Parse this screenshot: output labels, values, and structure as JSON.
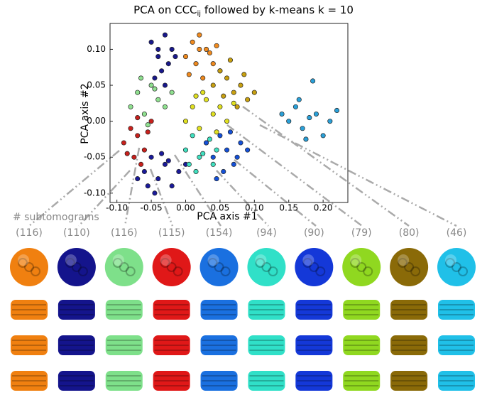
{
  "chart_data": {
    "type": "scatter",
    "title": "PCA on CCC",
    "title_subscript": "ij",
    "title_suffix": " followed by k-means k = 10",
    "x_label": "PCA axis #1",
    "y_label": "PCA axis #2",
    "xlim": [
      -0.11,
      0.236
    ],
    "ylim": [
      -0.113,
      0.136
    ],
    "xticks": [
      {
        "value": -0.1,
        "label": "-0.10"
      },
      {
        "value": -0.05,
        "label": "-0.05"
      },
      {
        "value": 0,
        "label": "0.00"
      },
      {
        "value": 0.05,
        "label": "0.05"
      },
      {
        "value": 0.1,
        "label": "0.10"
      },
      {
        "value": 0.15,
        "label": "0.15"
      },
      {
        "value": 0.2,
        "label": "0.20"
      }
    ],
    "yticks": [
      {
        "value": -0.1,
        "label": "-0.10"
      },
      {
        "value": -0.05,
        "label": "-0.05"
      },
      {
        "value": 0,
        "label": "0.00"
      },
      {
        "value": 0.05,
        "label": "0.05"
      },
      {
        "value": 0.1,
        "label": "0.10"
      }
    ],
    "series": [
      {
        "color": "#f08a1e",
        "x": [
          0.0,
          0.01,
          0.02,
          0.03,
          0.04,
          0.05,
          0.015,
          0.025,
          0.035,
          0.005,
          0.045,
          0.02
        ],
        "values": [
          0.09,
          0.11,
          0.12,
          0.1,
          0.08,
          0.07,
          0.08,
          0.06,
          0.095,
          0.065,
          0.105,
          0.1
        ]
      },
      {
        "color": "#18188c",
        "x": [
          -0.05,
          -0.04,
          -0.03,
          -0.02,
          -0.035,
          -0.045,
          -0.025,
          -0.015,
          -0.03,
          -0.04
        ],
        "values": [
          0.11,
          0.09,
          0.12,
          0.1,
          0.07,
          0.06,
          0.08,
          0.09,
          0.05,
          0.1
        ]
      },
      {
        "color": "#8fe08f",
        "x": [
          -0.08,
          -0.07,
          -0.06,
          -0.05,
          -0.04,
          -0.03,
          -0.02,
          -0.055,
          -0.045,
          -0.065
        ],
        "values": [
          0.02,
          0.04,
          0.01,
          0.05,
          0.03,
          0.02,
          0.04,
          -0.005,
          0.045,
          0.06
        ]
      },
      {
        "color": "#c8201c",
        "x": [
          -0.09,
          -0.08,
          -0.07,
          -0.06,
          -0.05,
          -0.075,
          -0.065,
          -0.055,
          -0.085,
          -0.07
        ],
        "values": [
          -0.03,
          -0.01,
          -0.02,
          -0.04,
          0.0,
          -0.05,
          -0.06,
          -0.015,
          -0.045,
          0.005
        ]
      },
      {
        "color": "#1a1a9a",
        "x": [
          -0.06,
          -0.05,
          -0.04,
          -0.03,
          -0.02,
          -0.01,
          -0.045,
          -0.035,
          -0.025,
          -0.055,
          0.0,
          -0.07
        ],
        "values": [
          -0.07,
          -0.05,
          -0.08,
          -0.06,
          -0.09,
          -0.07,
          -0.1,
          -0.045,
          -0.055,
          -0.09,
          -0.06,
          -0.08
        ]
      },
      {
        "color": "#40e0c0",
        "x": [
          0.0,
          0.01,
          0.02,
          0.03,
          0.04,
          0.015,
          0.025,
          0.035,
          0.005,
          0.045
        ],
        "values": [
          -0.04,
          -0.02,
          -0.05,
          -0.03,
          -0.06,
          -0.07,
          -0.045,
          -0.025,
          -0.06,
          -0.04
        ]
      },
      {
        "color": "#1450d8",
        "x": [
          0.03,
          0.04,
          0.05,
          0.06,
          0.07,
          0.08,
          0.055,
          0.065,
          0.045,
          0.075,
          0.09
        ],
        "values": [
          -0.03,
          -0.05,
          -0.02,
          -0.04,
          -0.06,
          -0.03,
          -0.07,
          -0.015,
          -0.08,
          -0.05,
          -0.04
        ]
      },
      {
        "color": "#e0e020",
        "x": [
          0.0,
          0.01,
          0.02,
          0.03,
          0.04,
          0.05,
          0.06,
          0.07,
          0.025,
          0.045,
          0.015
        ],
        "values": [
          0.0,
          0.02,
          -0.01,
          0.03,
          0.01,
          0.02,
          0.0,
          0.025,
          0.04,
          -0.015,
          0.035
        ]
      },
      {
        "color": "#c8a010",
        "x": [
          0.04,
          0.05,
          0.06,
          0.07,
          0.08,
          0.09,
          0.1,
          0.065,
          0.075,
          0.085,
          0.055
        ],
        "values": [
          0.05,
          0.07,
          0.06,
          0.04,
          0.05,
          0.03,
          0.04,
          0.085,
          0.02,
          0.065,
          0.035
        ]
      },
      {
        "color": "#2aa0d8",
        "x": [
          0.14,
          0.15,
          0.16,
          0.17,
          0.18,
          0.19,
          0.2,
          0.21,
          0.165,
          0.175,
          0.185,
          0.22
        ],
        "values": [
          0.01,
          0.0,
          0.02,
          -0.01,
          0.005,
          0.01,
          -0.02,
          0.0,
          0.03,
          -0.025,
          0.056,
          0.015
        ]
      }
    ],
    "subtomograms": {
      "label": "# subtomograms",
      "values": [
        116,
        110,
        116,
        115,
        154,
        94,
        90,
        79,
        80,
        46
      ],
      "value_labels": [
        "(116)",
        "(110)",
        "(116)",
        "(115)",
        "(154)",
        "(94)",
        "(90)",
        "(79)",
        "(80)",
        "(46)"
      ],
      "colors": [
        "#f08010",
        "#14148c",
        "#7ee08a",
        "#e01818",
        "#1a70e0",
        "#30e0c8",
        "#1438d8",
        "#90d820",
        "#8a6a08",
        "#20c0e8"
      ]
    }
  }
}
